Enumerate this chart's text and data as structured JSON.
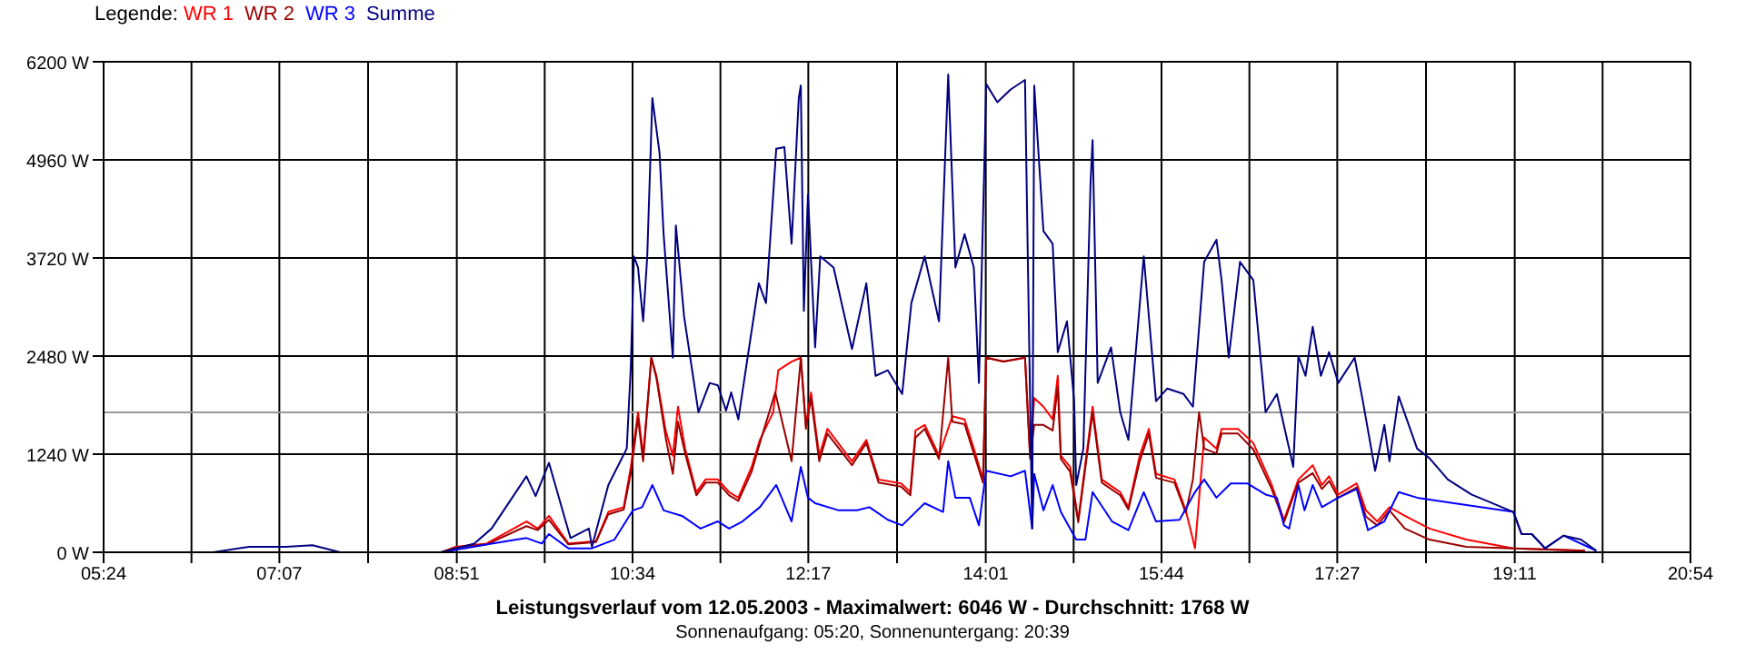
{
  "chart_data": {
    "type": "line",
    "title": "Leistungsverlauf vom 12.05.2003 - Maximalwert: 6046 W - Durchschnitt: 1768 W",
    "subtitle": "Sonnenaufgang: 05:20, Sonnenuntergang: 20:39",
    "legend_title": "Legende:",
    "legend": "top left",
    "grid": true,
    "xlim": [
      5.4,
      20.9
    ],
    "ylim": [
      0,
      6200
    ],
    "xticks": [
      {
        "value": 5.4,
        "label": "05:24"
      },
      {
        "value": 6.2583,
        "label": null
      },
      {
        "value": 7.1167,
        "label": "07:07"
      },
      {
        "value": 7.9833,
        "label": null
      },
      {
        "value": 8.85,
        "label": "08:51"
      },
      {
        "value": 9.7083,
        "label": null
      },
      {
        "value": 10.5667,
        "label": "10:34"
      },
      {
        "value": 11.425,
        "label": null
      },
      {
        "value": 12.2833,
        "label": "12:17"
      },
      {
        "value": 13.15,
        "label": null
      },
      {
        "value": 14.0167,
        "label": "14:01"
      },
      {
        "value": 14.875,
        "label": null
      },
      {
        "value": 15.7333,
        "label": "15:44"
      },
      {
        "value": 16.5917,
        "label": null
      },
      {
        "value": 17.45,
        "label": "17:27"
      },
      {
        "value": 18.3167,
        "label": null
      },
      {
        "value": 19.1833,
        "label": "19:11"
      },
      {
        "value": 20.0417,
        "label": null
      },
      {
        "value": 20.9,
        "label": "20:54"
      }
    ],
    "yticks": [
      {
        "value": 0,
        "label": "0 W"
      },
      {
        "value": 1240,
        "label": "1240 W"
      },
      {
        "value": 2480,
        "label": "2480 W"
      },
      {
        "value": 3720,
        "label": "3720 W"
      },
      {
        "value": 4960,
        "label": "4960 W"
      },
      {
        "value": 6200,
        "label": "6200 W"
      }
    ],
    "ref_lines": [
      {
        "axis": "y",
        "value": 1768,
        "color": "#999999"
      }
    ],
    "series": [
      {
        "name": "WR 1",
        "color": "#ff0000",
        "x": [
          8.7,
          8.84,
          9.14,
          9.53,
          9.64,
          9.75,
          9.94,
          10.21,
          10.33,
          10.48,
          10.55,
          10.62,
          10.67,
          10.75,
          10.8,
          10.89,
          10.96,
          11.01,
          11.08,
          11.19,
          11.28,
          11.4,
          11.51,
          11.6,
          11.73,
          11.81,
          11.94,
          11.99,
          12.12,
          12.21,
          12.26,
          12.31,
          12.39,
          12.47,
          12.71,
          12.85,
          12.97,
          13.19,
          13.28,
          13.33,
          13.42,
          13.56,
          13.69,
          13.81,
          13.9,
          13.99,
          14.02,
          14.19,
          14.4,
          14.45,
          14.49,
          14.58,
          14.67,
          14.72,
          14.75,
          14.84,
          14.92,
          15.06,
          15.15,
          15.33,
          15.41,
          15.52,
          15.61,
          15.68,
          15.86,
          15.97,
          16.04,
          16.06,
          16.15,
          16.27,
          16.32,
          16.48,
          16.63,
          16.81,
          16.93,
          17.07,
          17.21,
          17.3,
          17.37,
          17.46,
          17.64,
          17.73,
          17.84,
          17.96,
          18.11,
          18.35,
          18.71,
          19.17,
          19.87
        ],
        "values": [
          0,
          70,
          110,
          390,
          300,
          460,
          110,
          140,
          510,
          570,
          1080,
          1770,
          1220,
          2460,
          2230,
          1540,
          1220,
          1840,
          1310,
          760,
          920,
          920,
          760,
          690,
          1080,
          1420,
          1770,
          2300,
          2410,
          2460,
          1610,
          2020,
          1220,
          1560,
          1150,
          1420,
          920,
          870,
          760,
          1540,
          1610,
          1220,
          1720,
          1680,
          1310,
          920,
          2460,
          2410,
          2460,
          1220,
          1950,
          1840,
          1680,
          2230,
          1220,
          1080,
          410,
          1840,
          920,
          760,
          570,
          1220,
          1560,
          990,
          920,
          530,
          160,
          50,
          1450,
          1310,
          1560,
          1560,
          1380,
          850,
          410,
          920,
          1100,
          850,
          960,
          730,
          870,
          530,
          390,
          570,
          460,
          300,
          160,
          50,
          20
        ]
      },
      {
        "name": "WR 2",
        "color": "#990000",
        "x": [
          8.7,
          8.84,
          9.14,
          9.53,
          9.64,
          9.75,
          9.94,
          10.21,
          10.33,
          10.48,
          10.55,
          10.62,
          10.67,
          10.75,
          10.8,
          10.89,
          10.96,
          11.01,
          11.08,
          11.19,
          11.28,
          11.4,
          11.51,
          11.6,
          11.73,
          11.81,
          11.96,
          12.12,
          12.21,
          12.26,
          12.31,
          12.39,
          12.47,
          12.71,
          12.85,
          12.97,
          13.19,
          13.28,
          13.33,
          13.42,
          13.56,
          13.65,
          13.69,
          13.81,
          13.9,
          13.99,
          14.02,
          14.19,
          14.4,
          14.45,
          14.49,
          14.58,
          14.67,
          14.72,
          14.75,
          14.84,
          14.92,
          15.06,
          15.15,
          15.33,
          15.41,
          15.52,
          15.61,
          15.68,
          15.86,
          15.97,
          16.04,
          16.1,
          16.15,
          16.27,
          16.32,
          16.48,
          16.63,
          16.81,
          16.93,
          17.07,
          17.21,
          17.3,
          17.37,
          17.46,
          17.64,
          17.73,
          17.84,
          17.96,
          18.11,
          18.35,
          18.71,
          19.17,
          19.87
        ],
        "values": [
          0,
          60,
          100,
          330,
          280,
          410,
          100,
          130,
          480,
          540,
          1000,
          1700,
          1150,
          2460,
          2200,
          1450,
          990,
          1650,
          1250,
          720,
          880,
          880,
          720,
          650,
          1020,
          1380,
          2020,
          1150,
          2460,
          1560,
          1950,
          1150,
          1500,
          1100,
          1380,
          880,
          830,
          720,
          1450,
          1560,
          1180,
          2460,
          1650,
          1620,
          1250,
          880,
          2460,
          2410,
          2460,
          1180,
          1610,
          1610,
          1540,
          2100,
          1180,
          1020,
          380,
          1770,
          880,
          720,
          540,
          1150,
          1500,
          940,
          880,
          500,
          920,
          1770,
          1310,
          1250,
          1500,
          1500,
          1300,
          800,
          380,
          880,
          1000,
          800,
          900,
          690,
          820,
          450,
          340,
          530,
          300,
          160,
          70,
          50,
          20
        ]
      },
      {
        "name": "WR 3",
        "color": "#0000ff",
        "x": [
          8.7,
          9.19,
          9.53,
          9.68,
          9.75,
          9.94,
          10.17,
          10.39,
          10.57,
          10.66,
          10.76,
          10.87,
          11.05,
          11.23,
          11.4,
          11.51,
          11.64,
          11.81,
          11.97,
          12.12,
          12.21,
          12.28,
          12.35,
          12.58,
          12.76,
          12.88,
          13.06,
          13.2,
          13.42,
          13.6,
          13.65,
          13.72,
          13.86,
          13.95,
          14.02,
          14.26,
          14.4,
          14.47,
          14.49,
          14.58,
          14.67,
          14.75,
          14.9,
          14.99,
          15.06,
          15.25,
          15.41,
          15.56,
          15.68,
          15.91,
          16.06,
          16.15,
          16.27,
          16.41,
          16.57,
          16.75,
          16.86,
          16.93,
          16.98,
          17.07,
          17.13,
          17.21,
          17.3,
          17.46,
          17.64,
          17.75,
          17.91,
          18.05,
          18.23,
          18.59,
          19.17,
          19.25,
          19.35,
          19.48,
          19.66,
          19.98
        ],
        "values": [
          0,
          110,
          180,
          110,
          230,
          50,
          50,
          160,
          530,
          570,
          850,
          530,
          460,
          300,
          390,
          300,
          390,
          570,
          850,
          390,
          1080,
          690,
          620,
          530,
          530,
          570,
          410,
          340,
          620,
          510,
          1150,
          690,
          690,
          340,
          1030,
          960,
          1030,
          300,
          990,
          530,
          850,
          510,
          160,
          160,
          760,
          390,
          280,
          760,
          390,
          410,
          760,
          920,
          690,
          870,
          870,
          730,
          690,
          340,
          300,
          850,
          530,
          850,
          570,
          690,
          800,
          280,
          390,
          760,
          690,
          620,
          510,
          230,
          230,
          50,
          210,
          20
        ]
      },
      {
        "name": "Summe",
        "color": "#000080",
        "x": [
          6.47,
          6.82,
          7.18,
          7.44,
          7.71,
          8.7,
          9.02,
          9.19,
          9.53,
          9.62,
          9.75,
          9.96,
          10.14,
          10.17,
          10.33,
          10.51,
          10.55,
          10.58,
          10.62,
          10.67,
          10.71,
          10.76,
          10.83,
          10.87,
          10.96,
          10.99,
          11.07,
          11.21,
          11.32,
          11.4,
          11.48,
          11.53,
          11.6,
          11.69,
          11.8,
          11.87,
          11.97,
          12.05,
          12.12,
          12.19,
          12.21,
          12.24,
          12.28,
          12.35,
          12.4,
          12.53,
          12.71,
          12.85,
          12.94,
          13.06,
          13.2,
          13.29,
          13.42,
          13.56,
          13.65,
          13.72,
          13.81,
          13.9,
          13.95,
          14.01,
          14.02,
          14.13,
          14.26,
          14.4,
          14.43,
          14.47,
          14.49,
          14.58,
          14.67,
          14.72,
          14.81,
          14.88,
          14.9,
          14.97,
          15.04,
          15.06,
          15.11,
          15.24,
          15.33,
          15.41,
          15.56,
          15.68,
          15.79,
          15.95,
          16.04,
          16.15,
          16.27,
          16.32,
          16.39,
          16.5,
          16.63,
          16.75,
          16.86,
          17.02,
          17.07,
          17.14,
          17.21,
          17.29,
          17.37,
          17.46,
          17.62,
          17.7,
          17.82,
          17.91,
          17.96,
          18.05,
          18.23,
          18.35,
          18.53,
          18.76,
          19.17,
          19.25,
          19.35,
          19.48,
          19.66,
          19.83,
          19.98
        ],
        "values": [
          0,
          70,
          70,
          90,
          0,
          0,
          110,
          300,
          960,
          710,
          1130,
          180,
          300,
          70,
          850,
          1310,
          2360,
          3740,
          3600,
          2920,
          3740,
          5740,
          5050,
          4020,
          2460,
          4130,
          2980,
          1770,
          2140,
          2110,
          1790,
          2020,
          1680,
          2460,
          3400,
          3150,
          5100,
          5120,
          3900,
          5740,
          5900,
          3050,
          4520,
          2590,
          3740,
          3600,
          2570,
          3400,
          2230,
          2300,
          2000,
          3150,
          3740,
          2920,
          6040,
          3600,
          4020,
          3600,
          2140,
          5280,
          5920,
          5690,
          5850,
          5970,
          3510,
          300,
          5900,
          4060,
          3900,
          2530,
          2920,
          1910,
          850,
          1310,
          4660,
          5210,
          2140,
          2590,
          1770,
          1420,
          3740,
          1910,
          2070,
          2000,
          1840,
          3670,
          3950,
          3440,
          2460,
          3670,
          3440,
          1770,
          2000,
          1080,
          2480,
          2230,
          2850,
          2230,
          2530,
          2140,
          2460,
          1910,
          1030,
          1610,
          1150,
          1970,
          1310,
          1190,
          920,
          730,
          510,
          230,
          230,
          50,
          210,
          160,
          20
        ]
      }
    ]
  }
}
